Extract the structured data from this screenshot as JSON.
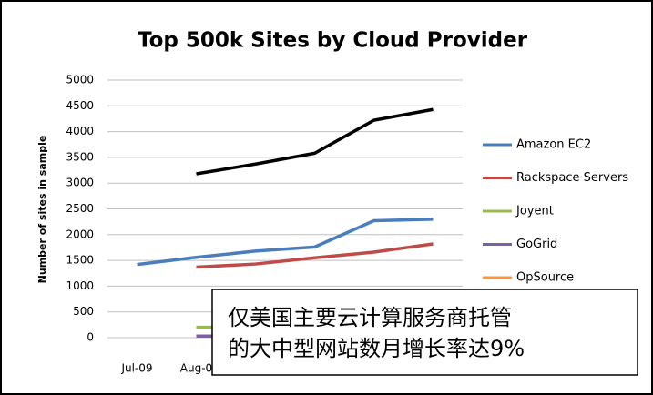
{
  "chart_data": {
    "type": "line",
    "title": "Top 500k Sites by Cloud Provider",
    "y_label": "Number of sites in sample",
    "categories": [
      "Jul-09",
      "Aug-0",
      null,
      null,
      null,
      null
    ],
    "series": [
      {
        "color": "#000000",
        "values": [
          null,
          3180,
          3370,
          3580,
          4220,
          4430
        ]
      },
      {
        "name": "Amazon EC2",
        "color": "#4a7ebb",
        "values": [
          1420,
          1560,
          1680,
          1760,
          2270,
          2300
        ]
      },
      {
        "name": "Rackspace Servers",
        "color": "#be4b48",
        "values": [
          null,
          1370,
          1430,
          1550,
          1660,
          1820
        ]
      },
      {
        "name": "Joyent",
        "color": "#98b954",
        "values": [
          null,
          200,
          200,
          null,
          null,
          null
        ]
      },
      {
        "name": "GoGrid",
        "color": "#7d60a0",
        "values": [
          null,
          30,
          30,
          null,
          null,
          null
        ]
      },
      {
        "name": "OpSource",
        "color": "#f79646",
        "values": [
          null,
          null,
          null,
          null,
          null,
          null
        ]
      }
    ],
    "ylim": [
      0,
      5000
    ],
    "yticks": [
      0,
      500,
      1000,
      1500,
      2000,
      2500,
      3000,
      3500,
      4000,
      4500,
      5000
    ],
    "grid": true,
    "annotation": [
      "仅美国主要云计算服务商托管",
      "的大中型网站数月增长率达9%"
    ]
  }
}
